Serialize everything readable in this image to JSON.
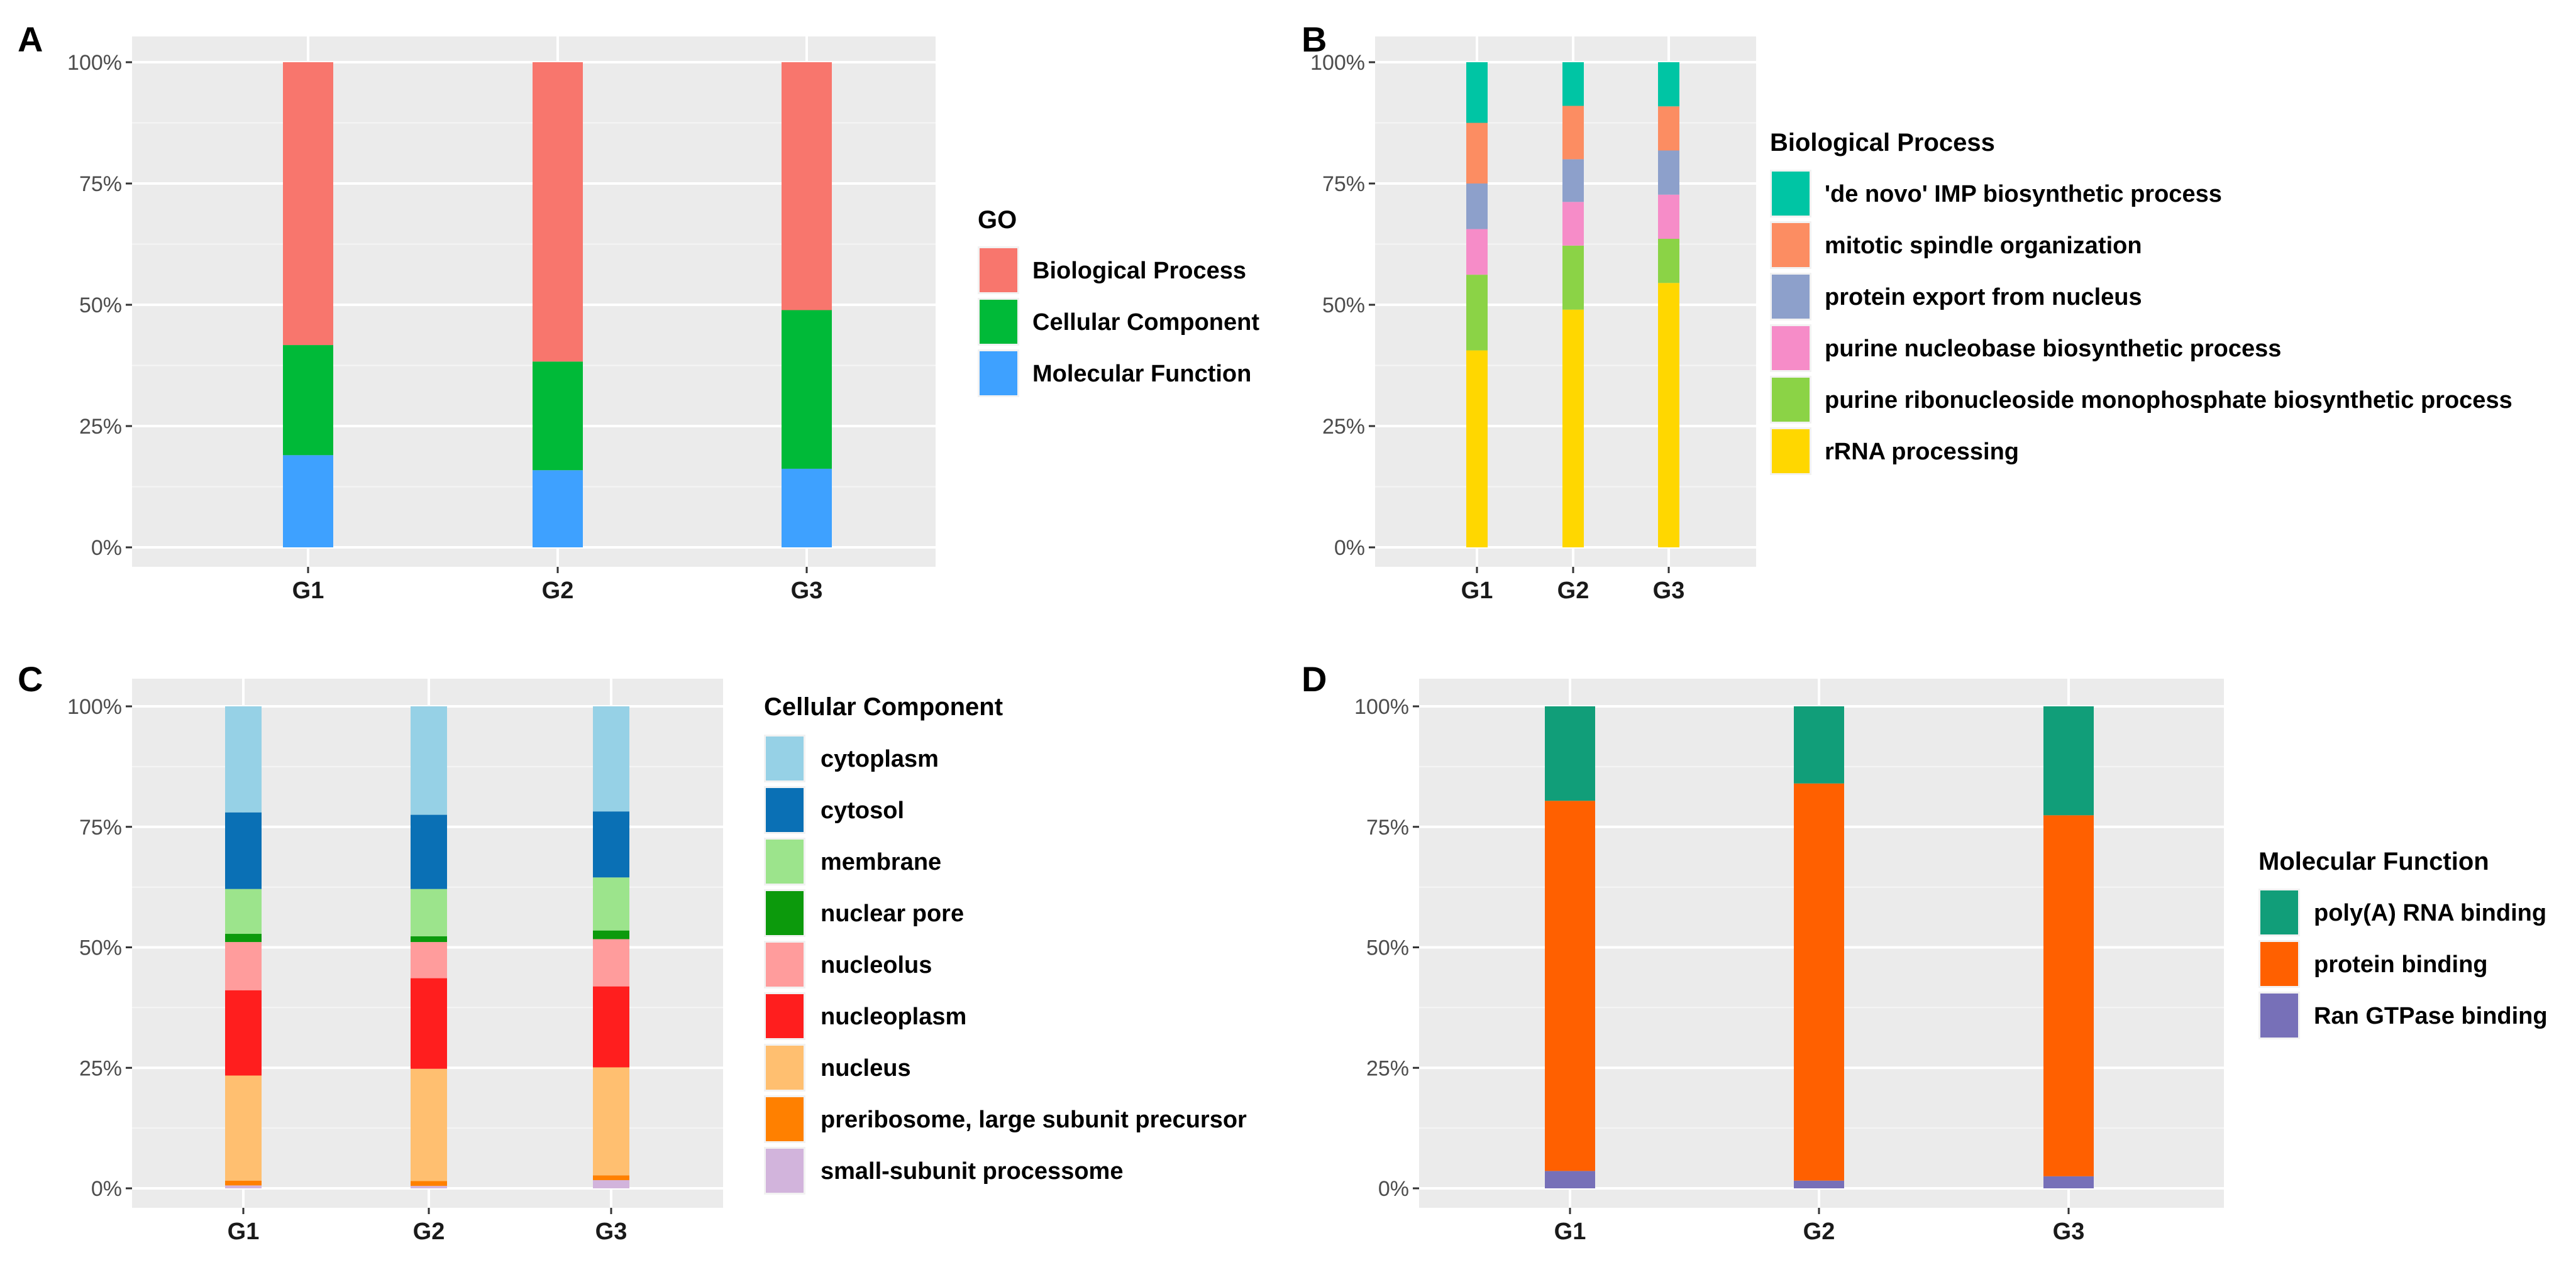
{
  "figure": {
    "charts": [
      {
        "panel": "A",
        "type": "bar",
        "stacked": true,
        "categories": [
          "G1",
          "G2",
          "G3"
        ],
        "legend_title": "GO",
        "legend_position": "right",
        "ylim": [
          0,
          100
        ],
        "yticks": [
          "0%",
          "25%",
          "50%",
          "75%",
          "100%"
        ],
        "grid": true,
        "series": [
          {
            "name": "Biological Process",
            "color": "#F8766D",
            "values": [
              58.3,
              61.7,
              51.1
            ]
          },
          {
            "name": "Cellular Component",
            "color": "#00BA38",
            "values": [
              22.7,
              22.4,
              32.7
            ]
          },
          {
            "name": "Molecular Function",
            "color": "#3EA1FF",
            "values": [
              19.0,
              15.9,
              16.2
            ]
          }
        ]
      },
      {
        "panel": "B",
        "type": "bar",
        "stacked": true,
        "categories": [
          "G1",
          "G2",
          "G3"
        ],
        "legend_title": "Biological Process",
        "legend_position": "right",
        "ylim": [
          0,
          100
        ],
        "yticks": [
          "0%",
          "25%",
          "50%",
          "75%",
          "100%"
        ],
        "grid": true,
        "series": [
          {
            "name": "'de novo' IMP biosynthetic process",
            "color": "#00C5A4",
            "values": [
              12.5,
              9.0,
              9.1
            ]
          },
          {
            "name": "mitotic spindle organization",
            "color": "#FC8D62",
            "values": [
              12.5,
              11.0,
              9.1
            ]
          },
          {
            "name": "protein export from nucleus",
            "color": "#8DA0CB",
            "values": [
              9.4,
              8.8,
              9.1
            ]
          },
          {
            "name": "purine nucleobase biosynthetic process",
            "color": "#F68CC8",
            "values": [
              9.4,
              9.0,
              9.1
            ]
          },
          {
            "name": "purine ribonucleoside monophosphate biosynthetic process",
            "color": "#8BD346",
            "values": [
              15.6,
              13.2,
              9.1
            ]
          },
          {
            "name": "rRNA processing",
            "color": "#FFD700",
            "values": [
              40.6,
              49.0,
              54.5
            ]
          }
        ]
      },
      {
        "panel": "C",
        "type": "bar",
        "stacked": true,
        "categories": [
          "G1",
          "G2",
          "G3"
        ],
        "legend_title": "Cellular Component",
        "legend_position": "right",
        "ylim": [
          0,
          100
        ],
        "yticks": [
          "0%",
          "25%",
          "50%",
          "75%",
          "100%"
        ],
        "grid": true,
        "series": [
          {
            "name": "cytoplasm",
            "color": "#96D1E6",
            "values": [
              22.0,
              22.5,
              21.8
            ]
          },
          {
            "name": "cytosol",
            "color": "#0A70B5",
            "values": [
              15.9,
              15.4,
              13.7
            ]
          },
          {
            "name": "membrane",
            "color": "#9CE48C",
            "values": [
              9.3,
              9.8,
              11.0
            ]
          },
          {
            "name": "nuclear pore",
            "color": "#0C9A0C",
            "values": [
              1.7,
              1.2,
              1.8
            ]
          },
          {
            "name": "nucleolus",
            "color": "#FF9C9C",
            "values": [
              10.0,
              7.5,
              9.8
            ]
          },
          {
            "name": "nucleoplasm",
            "color": "#FF1E1E",
            "values": [
              17.7,
              18.8,
              16.8
            ]
          },
          {
            "name": "nucleus",
            "color": "#FFBF70",
            "values": [
              21.8,
              23.3,
              22.4
            ]
          },
          {
            "name": "preribosome, large subunit precursor",
            "color": "#FF8000",
            "values": [
              1.0,
              1.0,
              1.0
            ]
          },
          {
            "name": "small-subunit processome",
            "color": "#D2B4DC",
            "values": [
              0.6,
              0.5,
              1.7
            ]
          }
        ]
      },
      {
        "panel": "D",
        "type": "bar",
        "stacked": true,
        "categories": [
          "G1",
          "G2",
          "G3"
        ],
        "legend_title": "Molecular Function",
        "legend_position": "right",
        "ylim": [
          0,
          100
        ],
        "yticks": [
          "0%",
          "25%",
          "50%",
          "75%",
          "100%"
        ],
        "grid": true,
        "series": [
          {
            "name": "poly(A) RNA binding",
            "color": "#119E79",
            "values": [
              19.6,
              16.0,
              22.6
            ]
          },
          {
            "name": "protein binding",
            "color": "#FF6000",
            "values": [
              76.8,
              82.4,
              74.9
            ]
          },
          {
            "name": "Ran GTPase binding",
            "color": "#7770B8",
            "values": [
              3.6,
              1.6,
              2.5
            ]
          }
        ]
      }
    ]
  },
  "chart_data": [
    {
      "panel": "A",
      "type": "bar",
      "stacked": true,
      "categories": [
        "G1",
        "G2",
        "G3"
      ],
      "ylim": [
        0,
        100
      ],
      "legend_title": "GO",
      "series": [
        {
          "name": "Biological Process",
          "values": [
            58.3,
            61.7,
            51.1
          ]
        },
        {
          "name": "Cellular Component",
          "values": [
            22.7,
            22.4,
            32.7
          ]
        },
        {
          "name": "Molecular Function",
          "values": [
            19.0,
            15.9,
            16.2
          ]
        }
      ]
    },
    {
      "panel": "B",
      "type": "bar",
      "stacked": true,
      "categories": [
        "G1",
        "G2",
        "G3"
      ],
      "ylim": [
        0,
        100
      ],
      "legend_title": "Biological Process",
      "series": [
        {
          "name": "'de novo' IMP biosynthetic process",
          "values": [
            12.5,
            9.0,
            9.1
          ]
        },
        {
          "name": "mitotic spindle organization",
          "values": [
            12.5,
            11.0,
            9.1
          ]
        },
        {
          "name": "protein export from nucleus",
          "values": [
            9.4,
            8.8,
            9.1
          ]
        },
        {
          "name": "purine nucleobase biosynthetic process",
          "values": [
            9.4,
            9.0,
            9.1
          ]
        },
        {
          "name": "purine ribonucleoside monophosphate biosynthetic process",
          "values": [
            15.6,
            13.2,
            9.1
          ]
        },
        {
          "name": "rRNA processing",
          "values": [
            40.6,
            49.0,
            54.5
          ]
        }
      ]
    },
    {
      "panel": "C",
      "type": "bar",
      "stacked": true,
      "categories": [
        "G1",
        "G2",
        "G3"
      ],
      "ylim": [
        0,
        100
      ],
      "legend_title": "Cellular Component",
      "series": [
        {
          "name": "cytoplasm",
          "values": [
            22.0,
            22.5,
            21.8
          ]
        },
        {
          "name": "cytosol",
          "values": [
            15.9,
            15.4,
            13.7
          ]
        },
        {
          "name": "membrane",
          "values": [
            9.3,
            9.8,
            11.0
          ]
        },
        {
          "name": "nuclear pore",
          "values": [
            1.7,
            1.2,
            1.8
          ]
        },
        {
          "name": "nucleolus",
          "values": [
            10.0,
            7.5,
            9.8
          ]
        },
        {
          "name": "nucleoplasm",
          "values": [
            17.7,
            18.8,
            16.8
          ]
        },
        {
          "name": "nucleus",
          "values": [
            21.8,
            23.3,
            22.4
          ]
        },
        {
          "name": "preribosome, large subunit precursor",
          "values": [
            1.0,
            1.0,
            1.0
          ]
        },
        {
          "name": "small-subunit processome",
          "values": [
            0.6,
            0.5,
            1.7
          ]
        }
      ]
    },
    {
      "panel": "D",
      "type": "bar",
      "stacked": true,
      "categories": [
        "G1",
        "G2",
        "G3"
      ],
      "ylim": [
        0,
        100
      ],
      "legend_title": "Molecular Function",
      "series": [
        {
          "name": "poly(A) RNA binding",
          "values": [
            19.6,
            16.0,
            22.6
          ]
        },
        {
          "name": "protein binding",
          "values": [
            76.8,
            82.4,
            74.9
          ]
        },
        {
          "name": "Ran GTPase binding",
          "values": [
            3.6,
            1.6,
            2.5
          ]
        }
      ]
    }
  ]
}
